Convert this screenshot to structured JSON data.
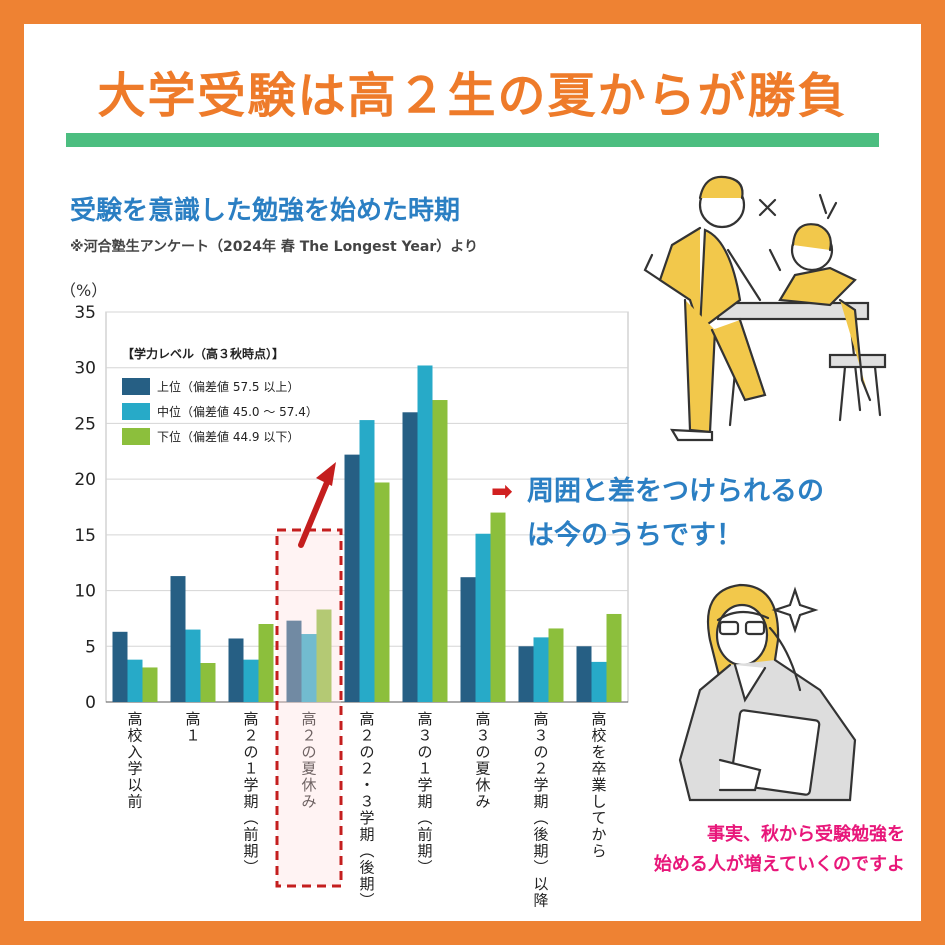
{
  "header": {
    "title": "大学受験は高２生の夏からが勝負"
  },
  "chart_header": {
    "subtitle": "受験を意識した勉強を始めた時期",
    "source": "※河合塾生アンケート（2024年 春 The Longest Year）より",
    "unit": "（%）"
  },
  "callout": {
    "arrow": "➡",
    "line1": "周囲と差をつけられるの",
    "line2": "は今のうちです！"
  },
  "note": {
    "line1": "事実、秋から受験勉強を",
    "line2": "始める人が増えていくのですよ"
  },
  "colors": {
    "background": "#ee8233",
    "title": "#ee7b2a",
    "rule": "#4cbe80",
    "blue_text": "#2b7fc3",
    "pink_text": "#e8177a",
    "highlight_box": "#c41e1e",
    "series_upper": "#265f84",
    "series_middle": "#27aac8",
    "series_lower": "#8cbf3c"
  },
  "chart_data": {
    "type": "bar",
    "legend_title": "【学力レベル（高３秋時点）】",
    "categories": [
      "高校入学以前",
      "高１",
      "高２の１学期（前期）",
      "高２の夏休み",
      "高２の２・３学期（後期）",
      "高３の１学期（前期）",
      "高３の夏休み",
      "高３の２学期（後期）以降",
      "高校を卒業してから"
    ],
    "series": [
      {
        "name": "上位（偏差値 57.5 以上）",
        "color": "#265f84",
        "values": [
          6.3,
          11.3,
          5.7,
          7.3,
          22.2,
          26.0,
          11.2,
          5.0,
          5.0
        ]
      },
      {
        "name": "中位（偏差値 45.0 〜 57.4）",
        "color": "#27aac8",
        "values": [
          3.8,
          6.5,
          3.8,
          6.1,
          25.3,
          30.2,
          15.1,
          5.8,
          3.6
        ]
      },
      {
        "name": "下位（偏差値 44.9 以下）",
        "color": "#8cbf3c",
        "values": [
          3.1,
          3.5,
          7.0,
          8.3,
          19.7,
          27.1,
          17.0,
          6.6,
          7.9
        ]
      }
    ],
    "ylim": [
      0,
      35
    ],
    "yticks": [
      0,
      5,
      10,
      15,
      20,
      25,
      30,
      35
    ],
    "highlight_category": "高２の夏休み",
    "legend_position": "top-left"
  }
}
